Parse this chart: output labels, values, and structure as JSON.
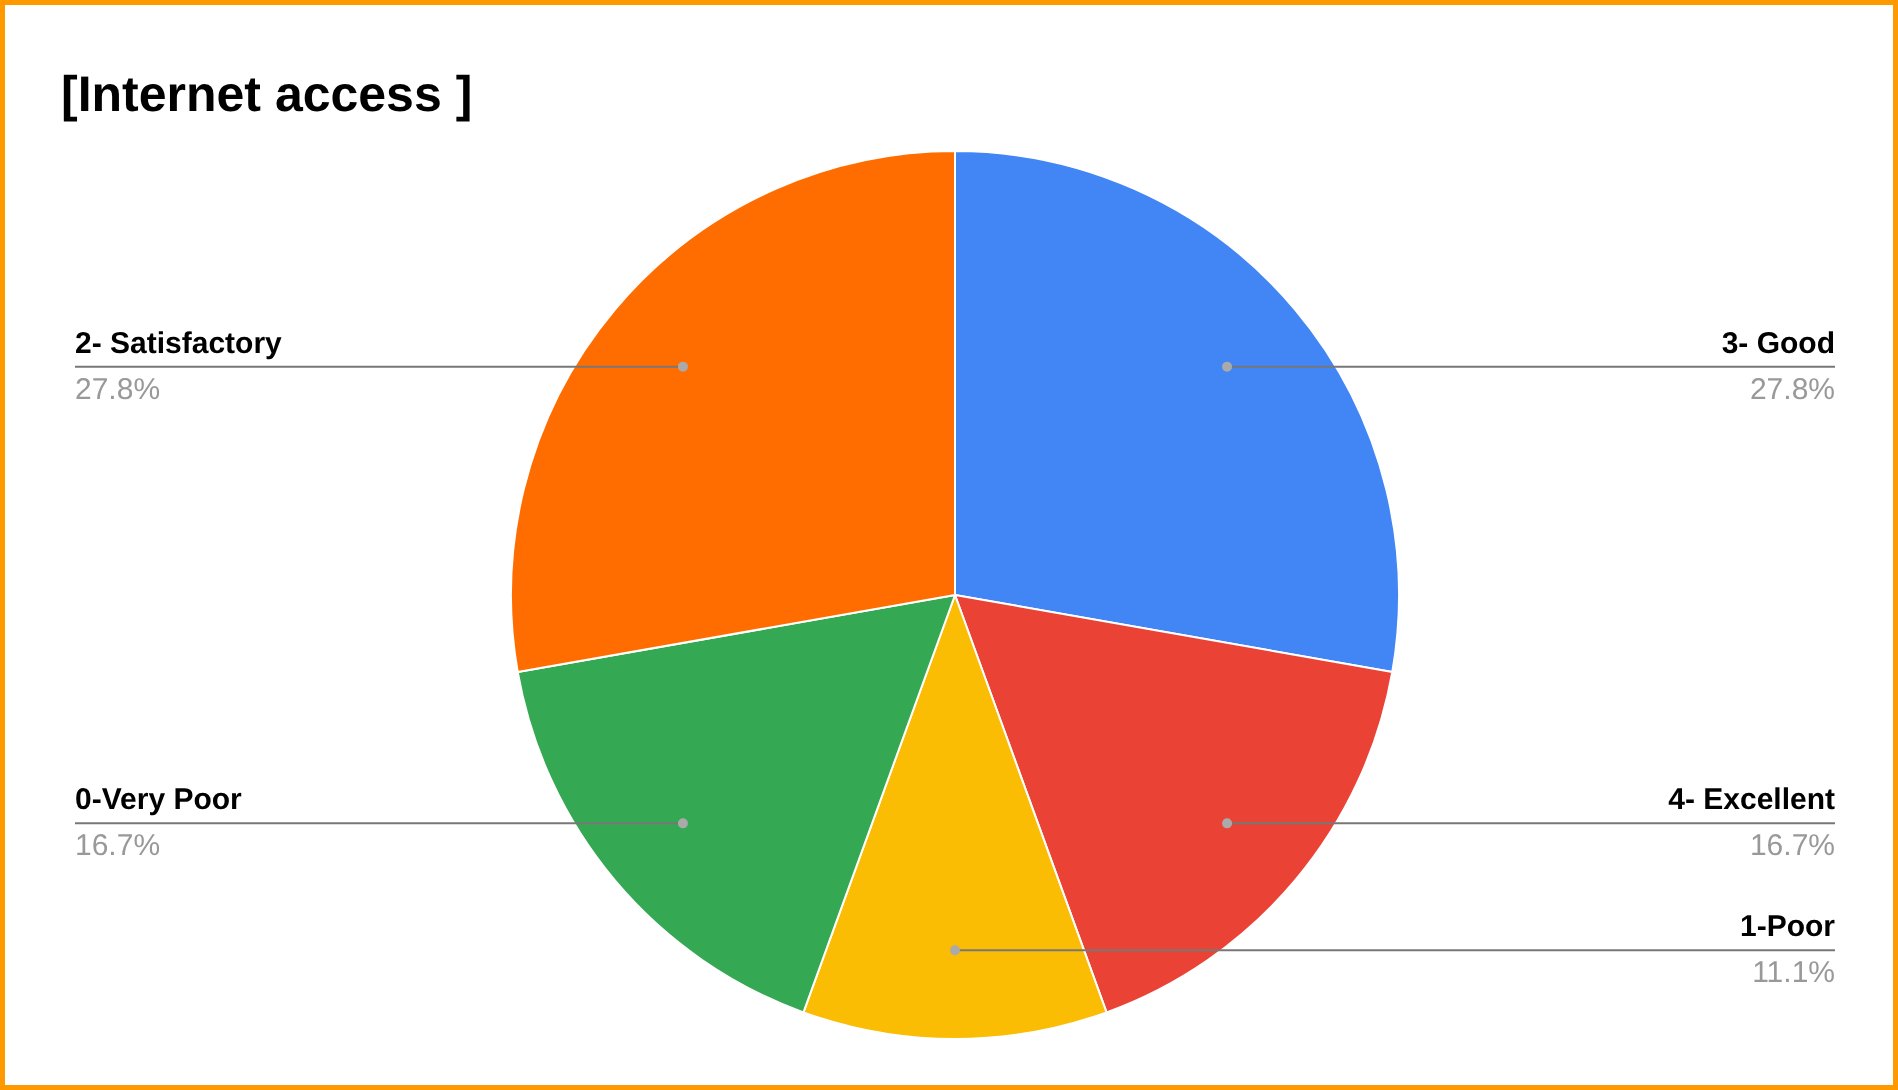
{
  "chart_data": {
    "type": "pie",
    "title": "[Internet access ]",
    "categories": [
      "3- Good",
      "4- Excellent",
      "1-Poor",
      "0-Very Poor",
      "2- Satisfactory"
    ],
    "values": [
      27.8,
      16.7,
      11.1,
      16.7,
      27.8
    ],
    "colors": [
      "#4285f4",
      "#ea4335",
      "#fbbc04",
      "#34a853",
      "#ff6d01"
    ],
    "value_labels": [
      "27.8%",
      "16.7%",
      "11.1%",
      "16.7%",
      "27.8%"
    ]
  }
}
